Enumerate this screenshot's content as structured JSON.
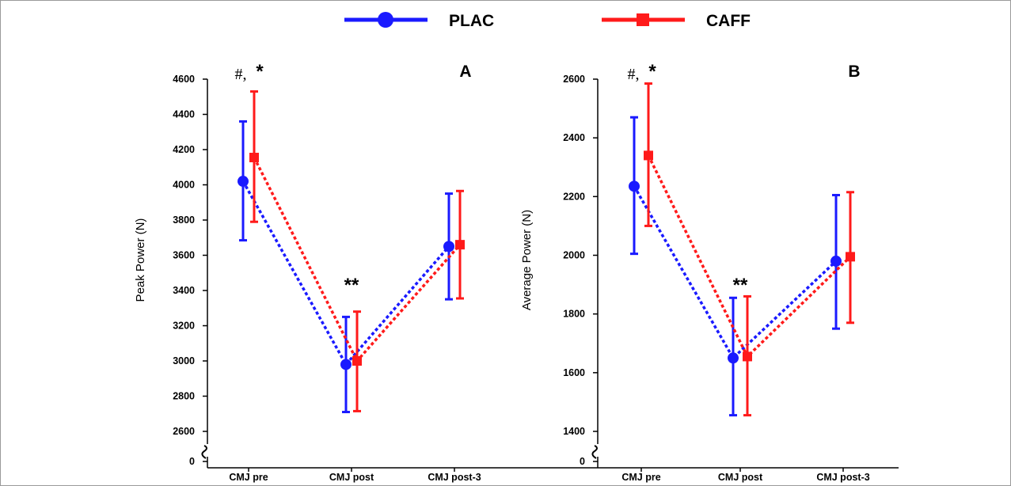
{
  "legend": {
    "entries": [
      {
        "label": "PLAC",
        "color": "#1a1aff",
        "marker": "circle"
      },
      {
        "label": "CAFF",
        "color": "#ff1a1a",
        "marker": "square"
      }
    ]
  },
  "chart_data": [
    {
      "type": "line",
      "panel_label": "A",
      "ylabel": "Peak Power (N)",
      "categories": [
        "CMJ pre",
        "CMJ post",
        "CMJ post-3"
      ],
      "yticks": [
        0,
        2600,
        2800,
        3000,
        3200,
        3400,
        3600,
        3800,
        4000,
        4200,
        4400,
        4600
      ],
      "ylim": [
        2500,
        4600
      ],
      "axis_break": true,
      "series": [
        {
          "name": "PLAC",
          "color": "#1a1aff",
          "marker": "circle",
          "values": [
            4020,
            2980,
            3650
          ],
          "err_low": [
            3685,
            2710,
            3350
          ],
          "err_high": [
            4360,
            3250,
            3950
          ]
        },
        {
          "name": "CAFF",
          "color": "#ff1a1a",
          "marker": "square",
          "values": [
            4155,
            3000,
            3660
          ],
          "err_low": [
            3790,
            2715,
            3355
          ],
          "err_high": [
            4530,
            3280,
            3965
          ]
        }
      ],
      "annotations": [
        {
          "text": "#,",
          "category": "CMJ pre",
          "style": "hash"
        },
        {
          "text": "*",
          "category": "CMJ pre",
          "style": "star"
        },
        {
          "text": "**",
          "category": "CMJ post",
          "style": "star"
        }
      ]
    },
    {
      "type": "line",
      "panel_label": "B",
      "ylabel": "Average Power (N)",
      "categories": [
        "CMJ pre",
        "CMJ post",
        "CMJ post-3"
      ],
      "yticks": [
        0,
        1400,
        1600,
        1800,
        2000,
        2200,
        2400,
        2600
      ],
      "ylim": [
        1350,
        2600
      ],
      "axis_break": true,
      "series": [
        {
          "name": "PLAC",
          "color": "#1a1aff",
          "marker": "circle",
          "values": [
            2235,
            1650,
            1980
          ],
          "err_low": [
            2005,
            1455,
            1750
          ],
          "err_high": [
            2470,
            1855,
            2205
          ]
        },
        {
          "name": "CAFF",
          "color": "#ff1a1a",
          "marker": "square",
          "values": [
            2340,
            1655,
            1995
          ],
          "err_low": [
            2100,
            1455,
            1770
          ],
          "err_high": [
            2585,
            1860,
            2215
          ]
        }
      ],
      "annotations": [
        {
          "text": "#,",
          "category": "CMJ pre",
          "style": "hash"
        },
        {
          "text": "*",
          "category": "CMJ pre",
          "style": "star"
        },
        {
          "text": "**",
          "category": "CMJ post",
          "style": "star"
        }
      ]
    }
  ]
}
